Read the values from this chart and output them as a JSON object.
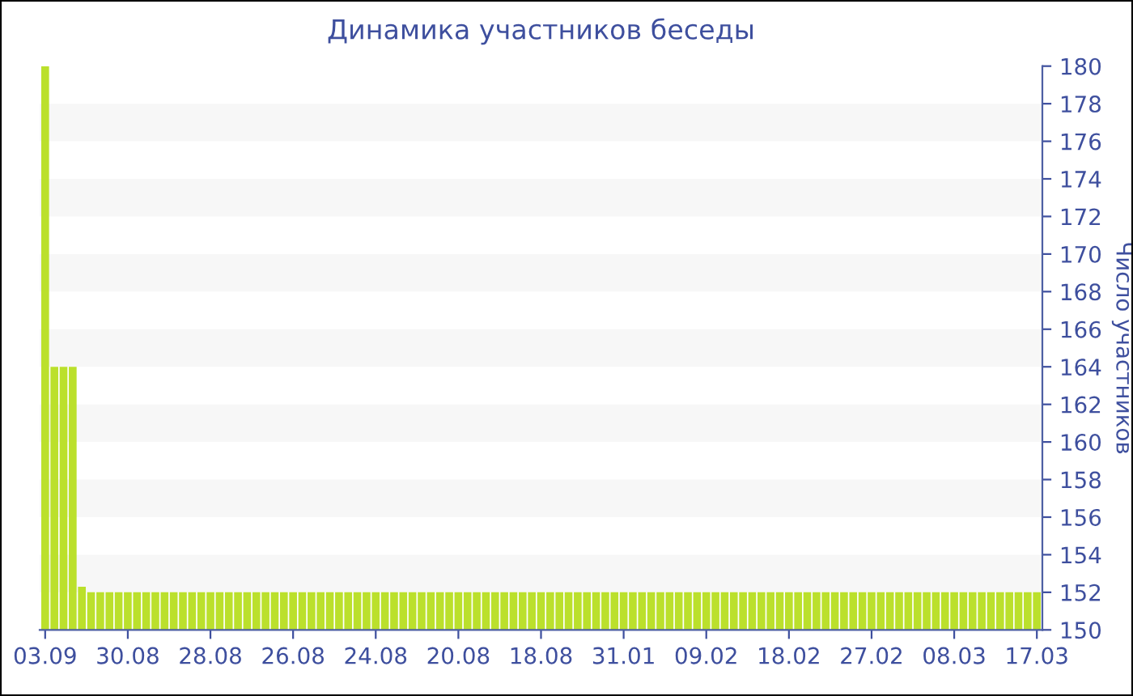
{
  "chart_data": {
    "type": "bar",
    "title": "Динамика участников беседы",
    "ylabel": "Число участников",
    "categories": [
      "03.09",
      null,
      null,
      null,
      null,
      null,
      null,
      null,
      null,
      "30.08",
      null,
      null,
      null,
      null,
      null,
      null,
      null,
      null,
      "28.08",
      null,
      null,
      null,
      null,
      null,
      null,
      null,
      null,
      "26.08",
      null,
      null,
      null,
      null,
      null,
      null,
      null,
      null,
      "24.08",
      null,
      null,
      null,
      null,
      null,
      null,
      null,
      null,
      "20.08",
      null,
      null,
      null,
      null,
      null,
      null,
      null,
      null,
      "18.08",
      null,
      null,
      null,
      null,
      null,
      null,
      null,
      null,
      "31.01",
      null,
      null,
      null,
      null,
      null,
      null,
      null,
      null,
      "09.02",
      null,
      null,
      null,
      null,
      null,
      null,
      null,
      null,
      "18.02",
      null,
      null,
      null,
      null,
      null,
      null,
      null,
      null,
      "27.02",
      null,
      null,
      null,
      null,
      null,
      null,
      null,
      null,
      "08.03",
      null,
      null,
      null,
      null,
      null,
      null,
      null,
      null,
      "17.03"
    ],
    "values": [
      180,
      164,
      164,
      164,
      152.3,
      152,
      152,
      152,
      152,
      152,
      152,
      152,
      152,
      152,
      152,
      152,
      152,
      152,
      152,
      152,
      152,
      152,
      152,
      152,
      152,
      152,
      152,
      152,
      152,
      152,
      152,
      152,
      152,
      152,
      152,
      152,
      152,
      152,
      152,
      152,
      152,
      152,
      152,
      152,
      152,
      152,
      152,
      152,
      152,
      152,
      152,
      152,
      152,
      152,
      152,
      152,
      152,
      152,
      152,
      152,
      152,
      152,
      152,
      152,
      152,
      152,
      152,
      152,
      152,
      152,
      152,
      152,
      152,
      152,
      152,
      152,
      152,
      152,
      152,
      152,
      152,
      152,
      152,
      152,
      152,
      152,
      152,
      152,
      152,
      152,
      152,
      152,
      152,
      152,
      152,
      152,
      152,
      152,
      152,
      152,
      152,
      152,
      152,
      152,
      152,
      152,
      152,
      152,
      152
    ],
    "color": "#bbe02c",
    "ylim": [
      150,
      180
    ],
    "yticks": [
      150,
      152,
      154,
      156,
      158,
      160,
      162,
      164,
      166,
      168,
      170,
      172,
      174,
      176,
      178,
      180
    ],
    "bands": [
      {
        "axis": "y",
        "from": 152,
        "to": 154,
        "color": "#f7f7f7"
      },
      {
        "axis": "y",
        "from": 156,
        "to": 158,
        "color": "#f7f7f7"
      },
      {
        "axis": "y",
        "from": 160,
        "to": 162,
        "color": "#f7f7f7"
      },
      {
        "axis": "y",
        "from": 164,
        "to": 166,
        "color": "#f7f7f7"
      },
      {
        "axis": "y",
        "from": 168,
        "to": 170,
        "color": "#f7f7f7"
      },
      {
        "axis": "y",
        "from": 172,
        "to": 174,
        "color": "#f7f7f7"
      },
      {
        "axis": "y",
        "from": 176,
        "to": 178,
        "color": "#f7f7f7"
      }
    ],
    "grid": false,
    "legend": false
  }
}
